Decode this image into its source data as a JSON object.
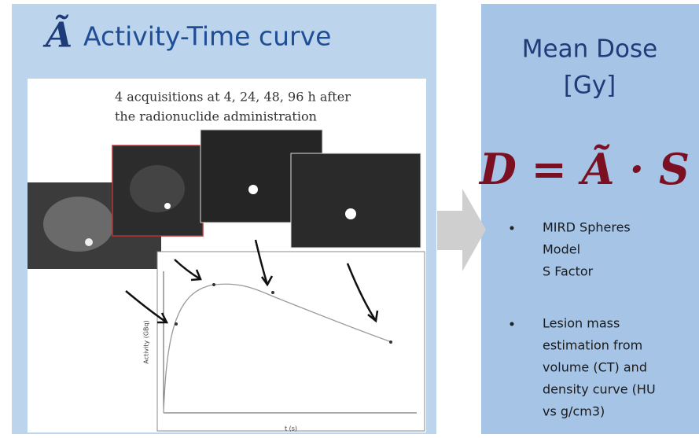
{
  "left_panel": {
    "symbol": "Ã",
    "title": "Activity-Time curve",
    "caption": [
      "4 acquisitions at 4, 24, 48, 96 h after",
      "the radionuclide administration"
    ],
    "plot": {
      "y_label": "Activity (GBq)",
      "x_label": "t (s)"
    }
  },
  "right_panel": {
    "heading": [
      "Mean Dose",
      "[Gy]"
    ],
    "formula": "D = Ã · S",
    "bullets": [
      [
        "MIRD Spheres",
        "Model",
        "S Factor"
      ],
      [
        "Lesion mass",
        "estimation from",
        "volume (CT) and",
        "density curve (HU",
        "vs g/cm3)"
      ]
    ]
  }
}
